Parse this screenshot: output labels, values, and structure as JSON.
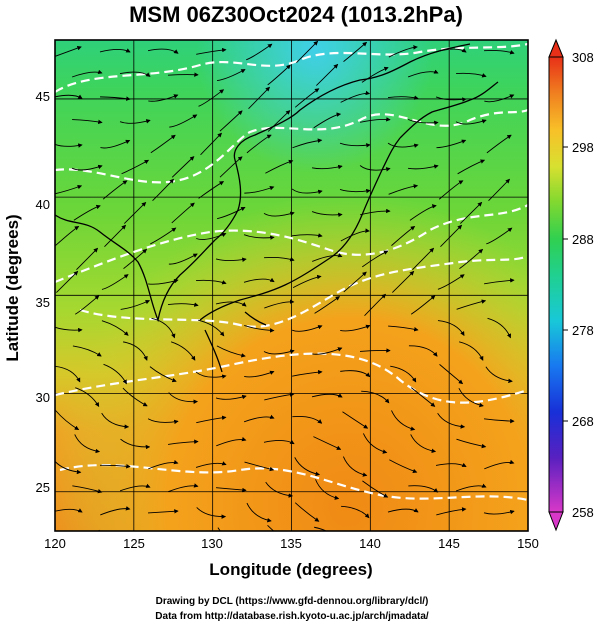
{
  "title": "MSM 06Z30Oct2024 (1013.2hPa)",
  "x_axis": {
    "label": "Longitude (degrees)",
    "range": [
      120,
      150
    ],
    "ticks": [
      "120",
      "125",
      "130",
      "135",
      "140",
      "145",
      "150"
    ]
  },
  "y_axis": {
    "label": "Latitude  (degrees)",
    "range": [
      23,
      48
    ],
    "ticks": [
      "25",
      "30",
      "35",
      "40",
      "45"
    ]
  },
  "colorbar": {
    "range": [
      258,
      308
    ],
    "ticks": [
      "308",
      "298",
      "288",
      "278",
      "268",
      "258"
    ]
  },
  "credits": {
    "line1": "Drawing by DCL (https://www.gfd-dennou.org/library/dcl/)",
    "line2": "Data from http://database.rish.kyoto-u.ac.jp/arch/jmadata/"
  },
  "colors": {
    "frame": "#000000",
    "streamline": "#000000",
    "contour": "#ffffff",
    "coastline": "#000000"
  }
}
